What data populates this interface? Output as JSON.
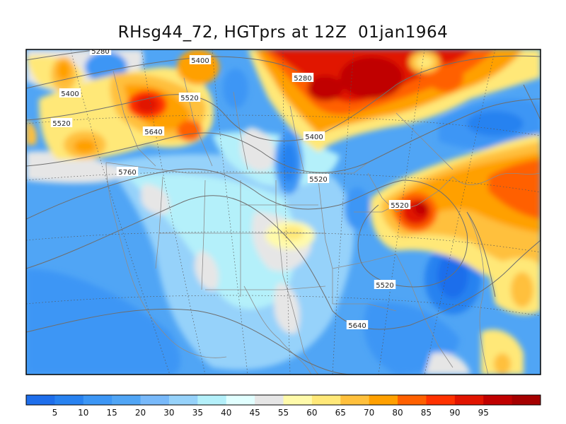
{
  "title": "RHsg44_72, HGTprs at 12Z  01jan1964",
  "legend": {
    "colors": [
      "#1e6eeb",
      "#2882f0",
      "#3c96f5",
      "#50a5f5",
      "#78b9fa",
      "#96d2fa",
      "#b4f0fa",
      "#e1ffff",
      "#e6e6e6",
      "#fffaaa",
      "#ffe878",
      "#ffc03c",
      "#ffa000",
      "#ff6000",
      "#ff3200",
      "#e11400",
      "#c00000",
      "#a50000"
    ],
    "ticks": [
      "5",
      "10",
      "15",
      "20",
      "30",
      "35",
      "40",
      "45",
      "55",
      "60",
      "65",
      "70",
      "80",
      "85",
      "90",
      "95"
    ]
  },
  "contour_labels": [
    "5280",
    "5400",
    "5520",
    "5400",
    "5640",
    "5520",
    "5280",
    "5400",
    "5520",
    "5760",
    "5520",
    "5520",
    "5640"
  ]
}
